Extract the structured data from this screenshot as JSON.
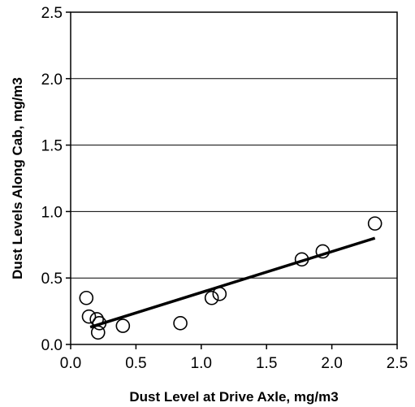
{
  "chart_data": {
    "type": "scatter",
    "xlabel": "Dust Level at Drive Axle, mg/m3",
    "ylabel": "Dust Levels Along Cab, mg/m3",
    "xlim": [
      0.0,
      2.5
    ],
    "ylim": [
      0.0,
      2.5
    ],
    "x_ticks": [
      "0.0",
      "0.5",
      "1.0",
      "1.5",
      "2.0",
      "2.5"
    ],
    "y_ticks": [
      "0.0",
      "0.5",
      "1.0",
      "1.5",
      "2.0",
      "2.5"
    ],
    "grid": "horizontal",
    "points": [
      {
        "x": 0.12,
        "y": 0.35
      },
      {
        "x": 0.14,
        "y": 0.21
      },
      {
        "x": 0.2,
        "y": 0.19
      },
      {
        "x": 0.22,
        "y": 0.16
      },
      {
        "x": 0.21,
        "y": 0.09
      },
      {
        "x": 0.4,
        "y": 0.14
      },
      {
        "x": 0.84,
        "y": 0.16
      },
      {
        "x": 1.08,
        "y": 0.35
      },
      {
        "x": 1.14,
        "y": 0.38
      },
      {
        "x": 1.77,
        "y": 0.64
      },
      {
        "x": 1.93,
        "y": 0.7
      },
      {
        "x": 2.33,
        "y": 0.91
      }
    ],
    "trendline": {
      "x": [
        0.15,
        2.33
      ],
      "y": [
        0.13,
        0.8
      ]
    },
    "colors": {
      "marker_stroke": "#000000",
      "line": "#000000",
      "grid": "#000000"
    }
  }
}
